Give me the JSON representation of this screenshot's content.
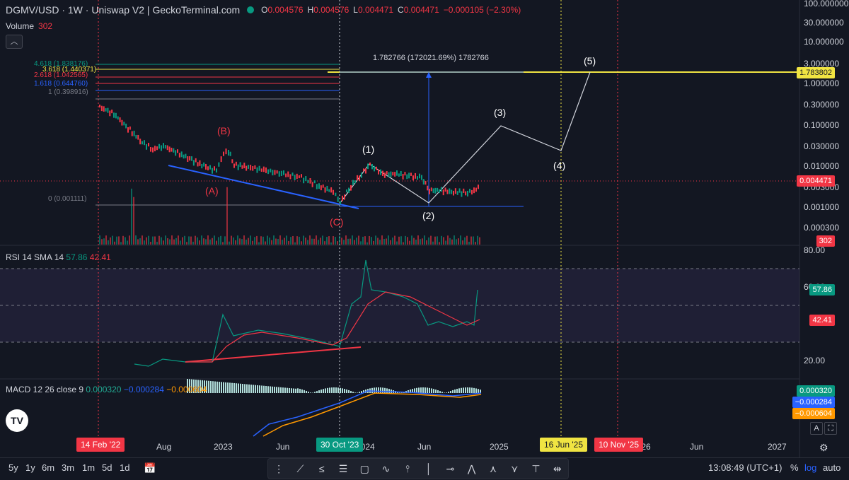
{
  "header": {
    "title": "DGMV/USD · 1W · Uniswap V2 | GeckoTerminal.com",
    "ohlc": [
      {
        "k": "O",
        "v": "0.004576"
      },
      {
        "k": "H",
        "v": "0.004576"
      },
      {
        "k": "L",
        "v": "0.004471"
      },
      {
        "k": "C",
        "v": "0.004471"
      }
    ],
    "change": "−0.000105 (−2.30%)"
  },
  "volume": {
    "label": "Volume",
    "value": "302"
  },
  "rsi": {
    "label": "RSI 14 SMA 14",
    "value1": "57.86",
    "value2": "42.41"
  },
  "macd": {
    "label": "MACD 12 26 close 9",
    "value1": "0.000320",
    "value2": "−0.000284",
    "value3": "−0.000604"
  },
  "price_axis": [
    "100.000000",
    "30.000000",
    "10.000000",
    "3.000000",
    "1.000000",
    "0.300000",
    "0.100000",
    "0.030000",
    "0.010000",
    "0.003000",
    "0.001000",
    "0.000300"
  ],
  "rsi_axis": [
    "80.00",
    "60.00",
    "20.00"
  ],
  "price_badges": {
    "target": "1.783802",
    "last": "0.004471",
    "volume": "302",
    "rsi1": "57.86",
    "rsi2": "42.41",
    "macd1": "0.000320",
    "macd2": "−0.000284",
    "macd3": "−0.000604"
  },
  "time_axis": [
    "Aug",
    "2023",
    "Jun",
    "2024",
    "Jun",
    "2025",
    "2026",
    "Jun",
    "2027"
  ],
  "time_badges": {
    "start": "14 Feb '22",
    "mid": "30 Oct '23",
    "yellow": "16 Jun '25",
    "red": "10 Nov '25"
  },
  "fib_levels": [
    "4.618 (1.838176)",
    "3.618 (1.440371)",
    "2.618 (1.042565)",
    "1.618 (0.644760)",
    "1 (0.398916)",
    "0 (0.001111)"
  ],
  "measure_label": "1.782766 (172021.69%) 1782766",
  "waves": {
    "A": "(A)",
    "B": "(B)",
    "C": "(C)",
    "w1": "(1)",
    "w2": "(2)",
    "w3": "(3)",
    "w4": "(4)",
    "w5": "(5)"
  },
  "timeframes": [
    "5y",
    "1y",
    "6m",
    "3m",
    "1m",
    "5d",
    "1d"
  ],
  "clock": "13:08:49 (UTC+1)",
  "scale": {
    "pct": "%",
    "log": "log",
    "auto": "auto"
  },
  "axis_buttons": {
    "a": "A"
  },
  "logo": "TV",
  "colors": {
    "bg": "#131722",
    "up": "#089981",
    "down": "#f23645",
    "fib_yellow": "#f0e442",
    "wave_blue": "#2962ff"
  }
}
